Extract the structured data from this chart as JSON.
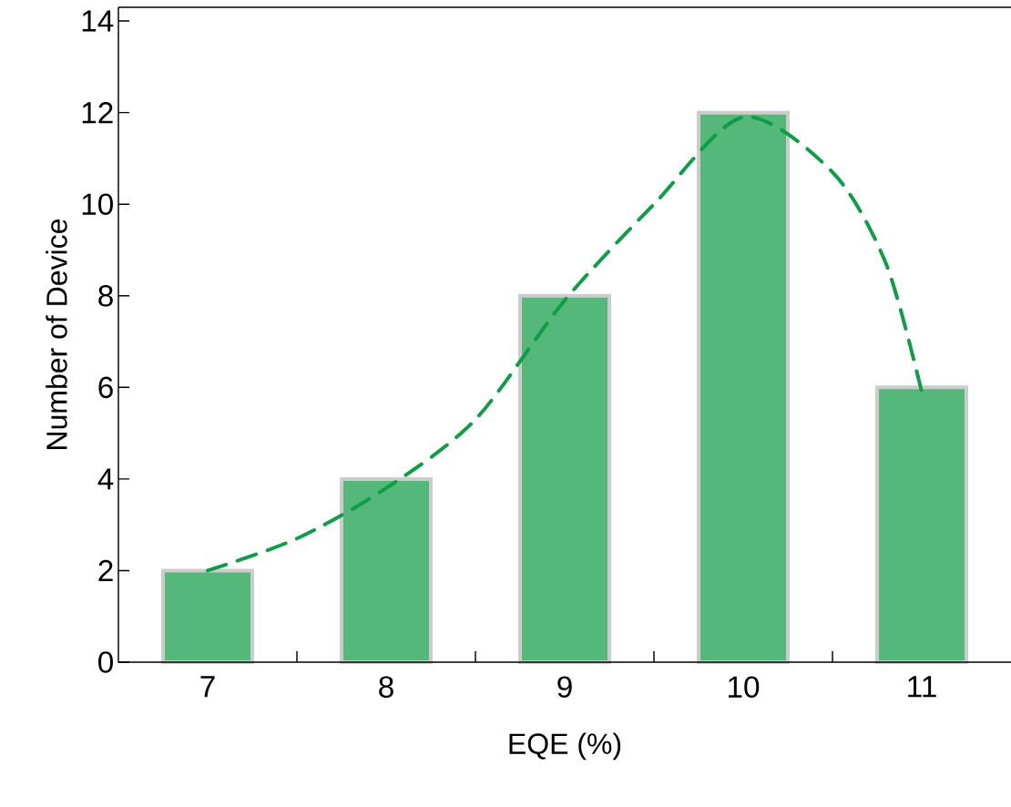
{
  "chart_data": {
    "type": "bar",
    "xlabel": "EQE (%)",
    "ylabel": "Number of Device",
    "x": [
      7,
      8,
      9,
      10,
      11
    ],
    "series": [
      {
        "color": "#55b87b",
        "values": [
          2,
          4,
          8,
          12,
          6
        ]
      },
      {
        "type": "line",
        "color": "#0f9d48",
        "line_style": "dashed",
        "x": [
          7,
          7.5,
          8,
          8.5,
          9,
          9.5,
          10,
          10.5,
          10.8,
          11
        ],
        "values": [
          2.0,
          2.7,
          3.8,
          5.3,
          7.9,
          10.0,
          11.9,
          10.7,
          8.7,
          5.9
        ]
      }
    ],
    "xlim": [
      6.5,
      11.5
    ],
    "ylim": [
      0,
      14.3
    ],
    "xticks": [
      7,
      8,
      9,
      10,
      11,
      {
        "value": 7.5,
        "label": null
      },
      {
        "value": 8.5,
        "label": null
      },
      {
        "value": 9.5,
        "label": null
      },
      {
        "value": 10.5,
        "label": null
      }
    ],
    "yticks": [
      0,
      2,
      4,
      6,
      8,
      10,
      12,
      14
    ]
  }
}
